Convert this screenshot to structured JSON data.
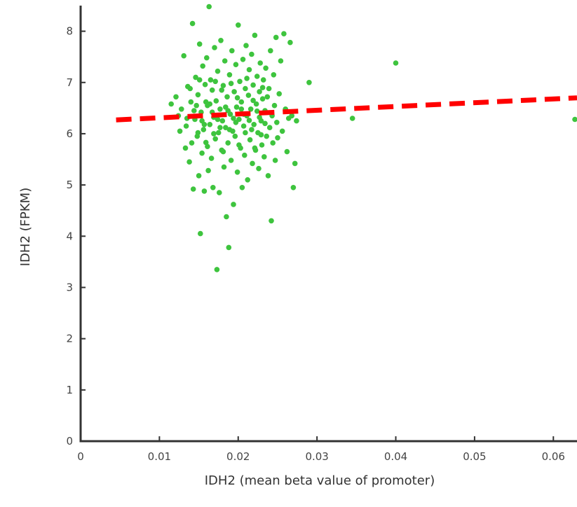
{
  "chart_data": {
    "type": "scatter",
    "title": "",
    "xlabel": "IDH2 (mean beta value of promoter)",
    "ylabel": "IDH2 (FPKM)",
    "xlim": [
      0,
      0.063
    ],
    "ylim": [
      0,
      8.5
    ],
    "x_ticks": [
      0,
      0.01,
      0.02,
      0.03,
      0.04,
      0.05,
      0.06
    ],
    "x_tick_labels": [
      "0",
      "0.01",
      "0.02",
      "0.03",
      "0.04",
      "0.05",
      "0.06"
    ],
    "y_ticks": [
      0,
      1,
      2,
      3,
      4,
      5,
      6,
      7,
      8
    ],
    "y_tick_labels": [
      "0",
      "1",
      "2",
      "3",
      "4",
      "5",
      "6",
      "7",
      "8"
    ],
    "grid": false,
    "legend": "none",
    "colors": {
      "points": "#3ec43e",
      "trend": "#ff0000",
      "axis": "#333333",
      "tick_text": "#444444"
    },
    "series": [
      {
        "type": "scatter",
        "points": [
          [
            0.0115,
            6.58
          ],
          [
            0.0121,
            6.72
          ],
          [
            0.0124,
            6.35
          ],
          [
            0.0126,
            6.05
          ],
          [
            0.0128,
            6.48
          ],
          [
            0.0131,
            7.52
          ],
          [
            0.0133,
            5.72
          ],
          [
            0.0134,
            6.15
          ],
          [
            0.0136,
            6.92
          ],
          [
            0.0138,
            5.45
          ],
          [
            0.014,
            6.62
          ],
          [
            0.0142,
            8.15
          ],
          [
            0.0143,
            4.92
          ],
          [
            0.0145,
            6.28
          ],
          [
            0.0146,
            7.1
          ],
          [
            0.0148,
            5.95
          ],
          [
            0.0149,
            6.76
          ],
          [
            0.015,
            5.18
          ],
          [
            0.0151,
            7.75
          ],
          [
            0.0152,
            4.05
          ],
          [
            0.0153,
            6.42
          ],
          [
            0.0154,
            5.62
          ],
          [
            0.0155,
            7.32
          ],
          [
            0.0156,
            6.08
          ],
          [
            0.0157,
            4.88
          ],
          [
            0.0158,
            6.96
          ],
          [
            0.0159,
            5.83
          ],
          [
            0.016,
            7.48
          ],
          [
            0.0161,
            6.55
          ],
          [
            0.0162,
            5.28
          ],
          [
            0.0163,
            8.48
          ],
          [
            0.0164,
            6.18
          ],
          [
            0.0165,
            7.05
          ],
          [
            0.0166,
            5.52
          ],
          [
            0.0167,
            6.85
          ],
          [
            0.0168,
            4.95
          ],
          [
            0.0169,
            6.32
          ],
          [
            0.017,
            7.68
          ],
          [
            0.0171,
            5.9
          ],
          [
            0.0172,
            6.64
          ],
          [
            0.0173,
            3.35
          ],
          [
            0.0174,
            7.22
          ],
          [
            0.0175,
            6.02
          ],
          [
            0.0176,
            4.85
          ],
          [
            0.0177,
            6.48
          ],
          [
            0.0178,
            7.82
          ],
          [
            0.0179,
            5.68
          ],
          [
            0.018,
            6.25
          ],
          [
            0.0181,
            6.94
          ],
          [
            0.0182,
            5.35
          ],
          [
            0.0183,
            7.42
          ],
          [
            0.0184,
            6.12
          ],
          [
            0.0185,
            4.38
          ],
          [
            0.0186,
            6.72
          ],
          [
            0.0187,
            5.82
          ],
          [
            0.0188,
            3.78
          ],
          [
            0.0189,
            7.15
          ],
          [
            0.019,
            6.38
          ],
          [
            0.0191,
            5.48
          ],
          [
            0.0192,
            7.62
          ],
          [
            0.0193,
            6.05
          ],
          [
            0.0194,
            4.62
          ],
          [
            0.0195,
            6.82
          ],
          [
            0.0196,
            5.95
          ],
          [
            0.0197,
            7.35
          ],
          [
            0.0198,
            6.52
          ],
          [
            0.0199,
            5.25
          ],
          [
            0.02,
            8.12
          ],
          [
            0.0201,
            6.28
          ],
          [
            0.0202,
            7.02
          ],
          [
            0.0203,
            5.72
          ],
          [
            0.0204,
            6.62
          ],
          [
            0.0205,
            4.95
          ],
          [
            0.0206,
            7.45
          ],
          [
            0.0207,
            6.15
          ],
          [
            0.0208,
            5.58
          ],
          [
            0.0209,
            6.88
          ],
          [
            0.021,
            7.72
          ],
          [
            0.0211,
            6.35
          ],
          [
            0.0212,
            5.1
          ],
          [
            0.0213,
            6.75
          ],
          [
            0.0214,
            7.25
          ],
          [
            0.0215,
            5.88
          ],
          [
            0.0216,
            6.48
          ],
          [
            0.0217,
            7.55
          ],
          [
            0.0218,
            5.42
          ],
          [
            0.0219,
            6.95
          ],
          [
            0.022,
            6.18
          ],
          [
            0.0221,
            7.92
          ],
          [
            0.0222,
            5.68
          ],
          [
            0.0223,
            6.58
          ],
          [
            0.0224,
            7.12
          ],
          [
            0.0225,
            6.02
          ],
          [
            0.0226,
            5.32
          ],
          [
            0.0227,
            6.82
          ],
          [
            0.0228,
            7.38
          ],
          [
            0.0229,
            6.25
          ],
          [
            0.023,
            5.78
          ],
          [
            0.0231,
            6.68
          ],
          [
            0.0232,
            7.05
          ],
          [
            0.0233,
            5.55
          ],
          [
            0.0234,
            6.45
          ],
          [
            0.0235,
            7.28
          ],
          [
            0.0236,
            5.95
          ],
          [
            0.0237,
            6.72
          ],
          [
            0.0238,
            5.18
          ],
          [
            0.0239,
            6.88
          ],
          [
            0.024,
            6.12
          ],
          [
            0.0241,
            7.62
          ],
          [
            0.0242,
            4.3
          ],
          [
            0.0243,
            6.35
          ],
          [
            0.0244,
            5.82
          ],
          [
            0.0245,
            7.15
          ],
          [
            0.0246,
            6.55
          ],
          [
            0.0247,
            5.48
          ],
          [
            0.0248,
            7.88
          ],
          [
            0.0249,
            6.22
          ],
          [
            0.025,
            5.92
          ],
          [
            0.0252,
            6.78
          ],
          [
            0.0254,
            7.42
          ],
          [
            0.0256,
            6.05
          ],
          [
            0.0258,
            7.95
          ],
          [
            0.026,
            6.48
          ],
          [
            0.0262,
            5.65
          ],
          [
            0.0264,
            6.3
          ],
          [
            0.0266,
            7.78
          ],
          [
            0.0268,
            6.35
          ],
          [
            0.027,
            4.95
          ],
          [
            0.0272,
            5.42
          ],
          [
            0.0274,
            6.25
          ],
          [
            0.029,
            7.0
          ],
          [
            0.0345,
            6.3
          ],
          [
            0.04,
            7.38
          ],
          [
            0.063,
            6.28
          ],
          [
            0.0135,
            6.3
          ],
          [
            0.0147,
            6.55
          ],
          [
            0.0157,
            6.18
          ],
          [
            0.0167,
            6.42
          ],
          [
            0.0177,
            6.12
          ],
          [
            0.0187,
            6.45
          ],
          [
            0.0197,
            6.22
          ],
          [
            0.0207,
            6.38
          ],
          [
            0.0217,
            6.08
          ],
          [
            0.0227,
            6.32
          ],
          [
            0.0139,
            6.88
          ],
          [
            0.0149,
            6.02
          ],
          [
            0.0159,
            6.62
          ],
          [
            0.0169,
            6.0
          ],
          [
            0.0179,
            6.85
          ],
          [
            0.0189,
            6.08
          ],
          [
            0.0199,
            6.7
          ],
          [
            0.0209,
            6.02
          ],
          [
            0.0219,
            6.65
          ],
          [
            0.0229,
            5.98
          ],
          [
            0.0141,
            5.82
          ],
          [
            0.0151,
            7.05
          ],
          [
            0.0161,
            5.75
          ],
          [
            0.0171,
            7.02
          ],
          [
            0.0181,
            5.65
          ],
          [
            0.0191,
            6.98
          ],
          [
            0.0201,
            5.78
          ],
          [
            0.0211,
            7.08
          ],
          [
            0.0221,
            5.72
          ],
          [
            0.0231,
            6.9
          ],
          [
            0.0144,
            6.45
          ],
          [
            0.0154,
            6.25
          ],
          [
            0.0164,
            6.58
          ],
          [
            0.0174,
            6.28
          ],
          [
            0.0184,
            6.52
          ],
          [
            0.0194,
            6.3
          ],
          [
            0.0204,
            6.48
          ],
          [
            0.0214,
            6.26
          ],
          [
            0.0224,
            6.44
          ],
          [
            0.0234,
            6.2
          ]
        ]
      },
      {
        "type": "line",
        "style": "dashed",
        "points": [
          [
            0.0045,
            6.27
          ],
          [
            0.063,
            6.7
          ]
        ]
      }
    ]
  }
}
